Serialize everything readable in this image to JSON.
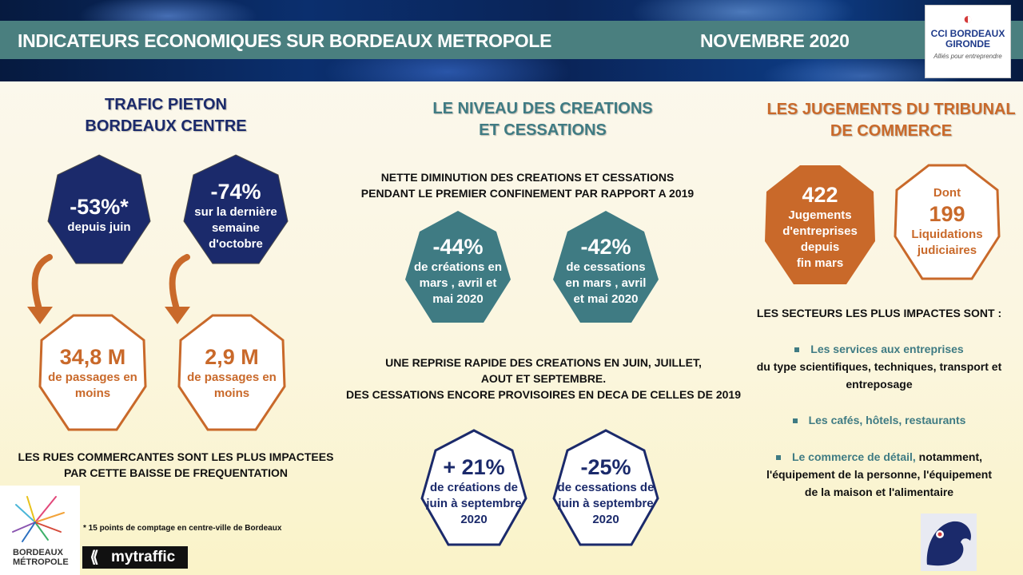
{
  "header": {
    "title": "INDICATEURS ECONOMIQUES SUR BORDEAUX METROPOLE",
    "date": "NOVEMBRE 2020"
  },
  "cci_logo": {
    "mark": "CCI",
    "name_line1": "CCI BORDEAUX",
    "name_line2": "GIRONDE",
    "tagline": "Alliés pour entreprendre"
  },
  "left": {
    "title_line1": "TRAFIC PIETON",
    "title_line2": "BORDEAUX CENTRE",
    "stat1": {
      "value": "-53%*",
      "line1": "depuis juin"
    },
    "stat2": {
      "value": "-74%",
      "line1": "sur la dernière",
      "line2": "semaine",
      "line3": "d'octobre"
    },
    "stat3": {
      "value": "34,8 M",
      "line1": "de passages en",
      "line2": "moins"
    },
    "stat4": {
      "value": "2,9 M",
      "line1": "de passages en",
      "line2": "moins"
    },
    "note_line1": "LES RUES COMMERCANTES SONT LES PLUS IMPACTEES",
    "note_line2": "PAR CETTE BAISSE DE FREQUENTATION",
    "footnote": "* 15 points de comptage en centre-ville de Bordeaux"
  },
  "middle": {
    "title_line1": "LE NIVEAU DES CREATIONS",
    "title_line2": "ET CESSATIONS",
    "note1_line1": "NETTE DIMINUTION DES CREATIONS ET CESSATIONS",
    "note1_line2": "PENDANT LE PREMIER CONFINEMENT PAR RAPPORT A 2019",
    "stat1": {
      "value": "-44%",
      "line1": "de créations en",
      "line2": "mars , avril et",
      "line3": "mai 2020"
    },
    "stat2": {
      "value": "-42%",
      "line1": "de cessations",
      "line2": "en mars , avril",
      "line3": "et mai 2020"
    },
    "note2_line1": "UNE REPRISE RAPIDE DES CREATIONS EN JUIN, JUILLET,",
    "note2_line2": "AOUT ET SEPTEMBRE.",
    "note2_line3": "DES CESSATIONS ENCORE PROVISOIRES EN DECA DE CELLES DE 2019",
    "stat3": {
      "value": "+ 21%",
      "line1": "de créations de",
      "line2": "juin à septembre",
      "line3": "2020"
    },
    "stat4": {
      "value": "-25%",
      "line1": "de cessations de",
      "line2": "juin à septembre",
      "line3": "2020"
    }
  },
  "right": {
    "title_line1": "LES JUGEMENTS DU TRIBUNAL",
    "title_line2": "DE COMMERCE",
    "stat1": {
      "value": "422",
      "line1": "Jugements",
      "line2": "d'entreprises",
      "line3": "depuis",
      "line4": "fin mars"
    },
    "stat2": {
      "prefix": "Dont",
      "value": "199",
      "line1": "Liquidations",
      "line2": "judiciaires"
    },
    "sectors_title": "LES SECTEURS LES PLUS IMPACTES SONT :",
    "sector1_head": "Les services aux entreprises",
    "sector1_line2": "du type scientifiques, techniques, transport et",
    "sector1_line3": "entreposage",
    "sector2_head": "Les cafés, hôtels, restaurants",
    "sector3_head": "Le commerce de détail,",
    "sector3_tail": " notamment,",
    "sector3_line2": "l'équipement de la personne, l'équipement",
    "sector3_line3": "de la maison et l'alimentaire"
  },
  "logos": {
    "bordeaux_metropole_line1": "BORDEAUX",
    "bordeaux_metropole_line2": "MÉTROPOLE",
    "mytraffic": "mytraffic"
  },
  "colors": {
    "navy": "#1b2a6b",
    "teal": "#3f7b83",
    "orange": "#c9692a",
    "banner_bar": "#4a7f7f"
  }
}
